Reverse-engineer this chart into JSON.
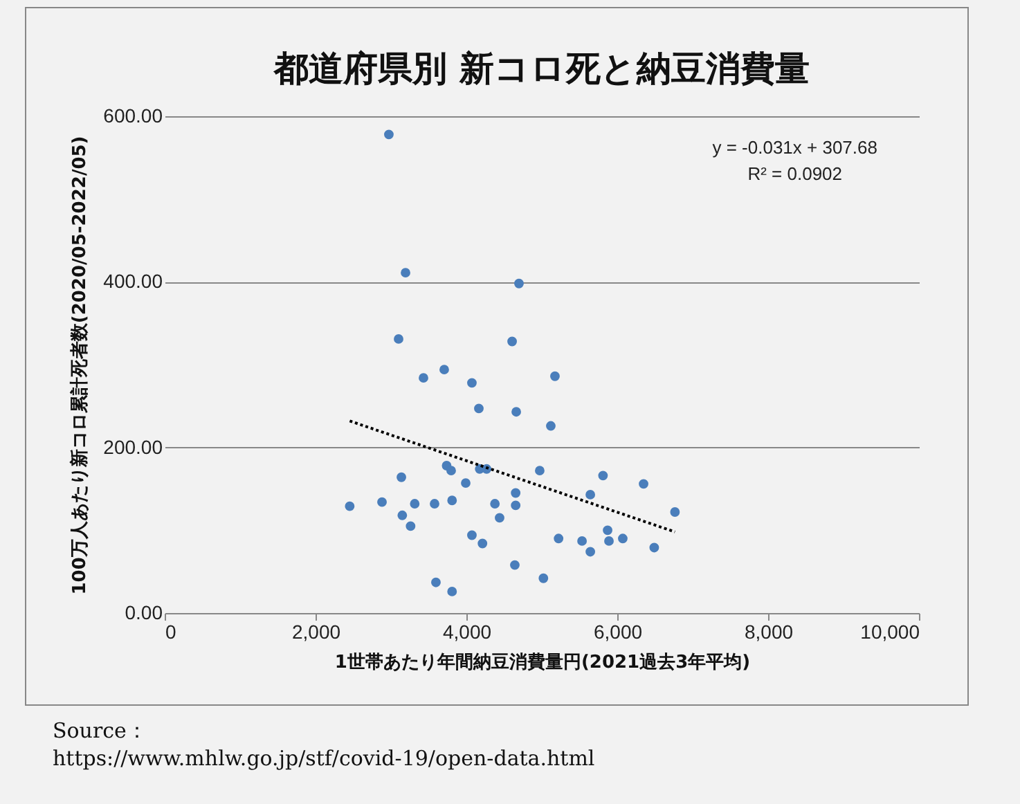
{
  "chart_data": {
    "type": "scatter",
    "title": "都道府県別 新コロ死と納豆消費量",
    "xlabel": "1世帯あたり年間納豆消費量円(2021過去3年平均)",
    "ylabel": "100万人あたり新コロ累計死者数(2020/05-2022/05)",
    "xlim": [
      0,
      10000
    ],
    "xticks": [
      0,
      {
        "value": 2000,
        "label": "2,000"
      },
      {
        "value": 4000,
        "label": "4,000"
      },
      {
        "value": 6000,
        "label": "6,000"
      },
      {
        "value": 8000,
        "label": "8,000"
      },
      {
        "value": 10000,
        "label": "10,000"
      }
    ],
    "ylim": [
      0,
      600
    ],
    "yticks": [
      {
        "value": 0,
        "label": "0.00"
      },
      {
        "value": 200,
        "label": "200.00"
      },
      {
        "value": 400,
        "label": "400.00"
      },
      {
        "value": 600,
        "label": "600.00"
      }
    ],
    "grid": "y",
    "series": [
      {
        "color": "#4a7ebb",
        "marker": "circle",
        "x": [
          2972,
          3193,
          4697,
          3101,
          4606,
          3706,
          5174,
          3431,
          4073,
          4165,
          4661,
          5119,
          2453,
          2881,
          3138,
          3150,
          3260,
          3315,
          3578,
          3810,
          3738,
          3798,
          3991,
          4176,
          4268,
          4653,
          4653,
          4378,
          4440,
          4073,
          4213,
          4972,
          4642,
          5021,
          3596,
          3810,
          5222,
          5533,
          5643,
          5643,
          5811,
          6349,
          6765,
          5872,
          5890,
          6073,
          6490
        ],
        "values": [
          578,
          411,
          398,
          331,
          328,
          294,
          286,
          284,
          278,
          247,
          243,
          226,
          129,
          134,
          164,
          118,
          105,
          132,
          132,
          136,
          178,
          172,
          157,
          174,
          174,
          145,
          130,
          132,
          115,
          94,
          84,
          172,
          58,
          42,
          37,
          26,
          90,
          87,
          74,
          143,
          166,
          156,
          122,
          100,
          87,
          90,
          79
        ]
      },
      {
        "type": "line",
        "color": "#000000",
        "line_style": "dotted",
        "x": [
          2453,
          6765
        ],
        "values": [
          232,
          98
        ]
      }
    ],
    "annotations": [
      "y = -0.031x + 307.68",
      "R² = 0.0902",
      "Source：",
      "https://www.mhlw.go.jp/stf/covid-19/open-data.html"
    ]
  }
}
